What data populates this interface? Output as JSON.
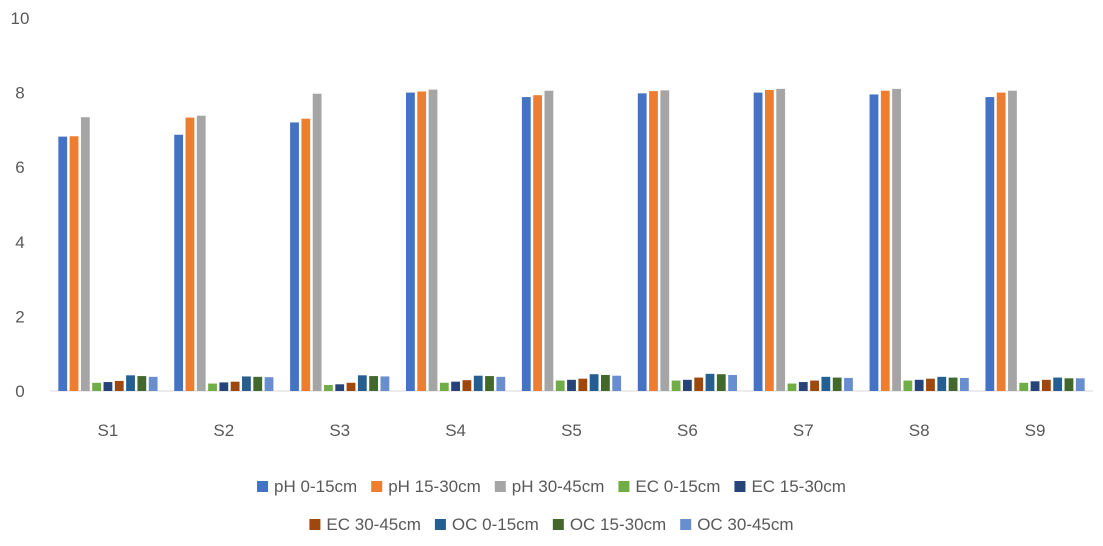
{
  "chart_data": {
    "type": "bar",
    "title": "",
    "xlabel": "",
    "ylabel": "",
    "ylim": [
      0,
      10
    ],
    "yticks": [
      "0",
      "2",
      "4",
      "6",
      "8",
      "10"
    ],
    "grid": false,
    "legend_position": "bottom",
    "categories": [
      "S1",
      "S2",
      "S3",
      "S4",
      "S5",
      "S6",
      "S7",
      "S8",
      "S9"
    ],
    "series": [
      {
        "name": "pH 0-15cm",
        "color": "#4472C4",
        "values": [
          6.82,
          6.87,
          7.2,
          8.0,
          7.88,
          7.98,
          8.0,
          7.95,
          7.88
        ]
      },
      {
        "name": "pH 15-30cm",
        "color": "#ED7D31",
        "values": [
          6.83,
          7.33,
          7.3,
          8.03,
          7.93,
          8.04,
          8.07,
          8.05,
          8.0
        ]
      },
      {
        "name": "pH 30-45cm",
        "color": "#A5A5A5",
        "values": [
          7.34,
          7.38,
          7.97,
          8.08,
          8.05,
          8.06,
          8.1,
          8.1,
          8.05
        ]
      },
      {
        "name": "EC 0-15cm",
        "color": "#70AD47",
        "values": [
          0.22,
          0.2,
          0.16,
          0.22,
          0.28,
          0.28,
          0.2,
          0.28,
          0.22
        ]
      },
      {
        "name": "EC 15-30cm",
        "color": "#264478",
        "values": [
          0.24,
          0.23,
          0.18,
          0.25,
          0.3,
          0.3,
          0.24,
          0.3,
          0.26
        ]
      },
      {
        "name": "EC 30-45cm",
        "color": "#9E480E",
        "values": [
          0.27,
          0.25,
          0.22,
          0.29,
          0.33,
          0.36,
          0.28,
          0.33,
          0.3
        ]
      },
      {
        "name": "OC 0-15cm",
        "color": "#255E91",
        "values": [
          0.42,
          0.39,
          0.42,
          0.41,
          0.45,
          0.46,
          0.38,
          0.38,
          0.36
        ]
      },
      {
        "name": "OC 15-30cm",
        "color": "#43682B",
        "values": [
          0.4,
          0.38,
          0.4,
          0.4,
          0.43,
          0.45,
          0.36,
          0.36,
          0.34
        ]
      },
      {
        "name": "OC 30-45cm",
        "color": "#698ED0",
        "values": [
          0.38,
          0.37,
          0.39,
          0.38,
          0.41,
          0.43,
          0.35,
          0.35,
          0.34
        ]
      }
    ]
  }
}
